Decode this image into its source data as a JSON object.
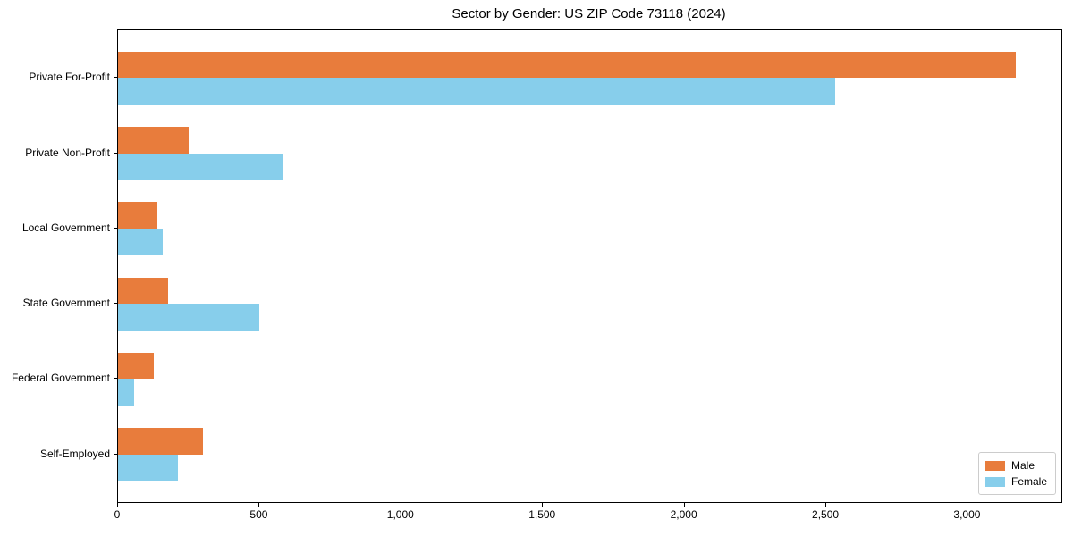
{
  "chart_data": {
    "type": "bar",
    "orientation": "horizontal",
    "title": "Sector by Gender: US ZIP Code 73118 (2024)",
    "categories": [
      "Private For-Profit",
      "Private Non-Profit",
      "Local Government",
      "State Government",
      "Federal Government",
      "Self-Employed"
    ],
    "series": [
      {
        "name": "Male",
        "color": "#e87c3c",
        "values": [
          3170,
          250,
          140,
          178,
          126,
          300
        ]
      },
      {
        "name": "Female",
        "color": "#87ceeb",
        "values": [
          2530,
          585,
          158,
          500,
          57,
          211
        ]
      }
    ],
    "xlabel": "",
    "ylabel": "",
    "xlim": [
      0,
      3330
    ],
    "xticks": [
      0,
      500,
      1000,
      1500,
      2000,
      2500,
      3000
    ],
    "xtick_labels": [
      "0",
      "500",
      "1,000",
      "1,500",
      "2,000",
      "2,500",
      "3,000"
    ],
    "legend": {
      "position": "lower right"
    },
    "grid": false,
    "axis_color": "#000000",
    "background_color": "#ffffff"
  }
}
